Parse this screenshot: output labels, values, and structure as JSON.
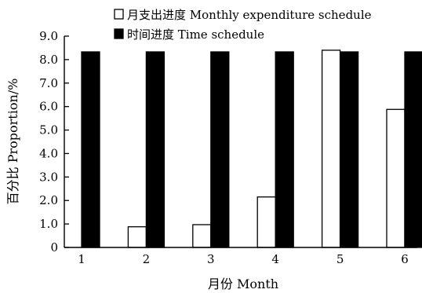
{
  "chart_data": {
    "type": "bar",
    "xlabel": "月份 Month",
    "ylabel": "百分比 Proportion/%",
    "ylim": [
      0,
      9
    ],
    "yticks": [
      "0",
      "1.0",
      "2.0",
      "3.0",
      "4.0",
      "5.0",
      "6.0",
      "7.0",
      "8.0",
      "9.0"
    ],
    "categories": [
      "1",
      "2",
      "3",
      "4",
      "5",
      "6"
    ],
    "series": [
      {
        "name": "月支出进度 Monthly expenditure schedule",
        "fill": "#ffffff",
        "values": [
          0,
          0.88,
          0.97,
          2.15,
          8.4,
          5.88
        ]
      },
      {
        "name": "时间进度 Time schedule",
        "fill": "#000000",
        "values": [
          8.33,
          8.33,
          8.33,
          8.33,
          8.33,
          8.33
        ]
      }
    ],
    "legend_position": "top",
    "grid": false
  }
}
